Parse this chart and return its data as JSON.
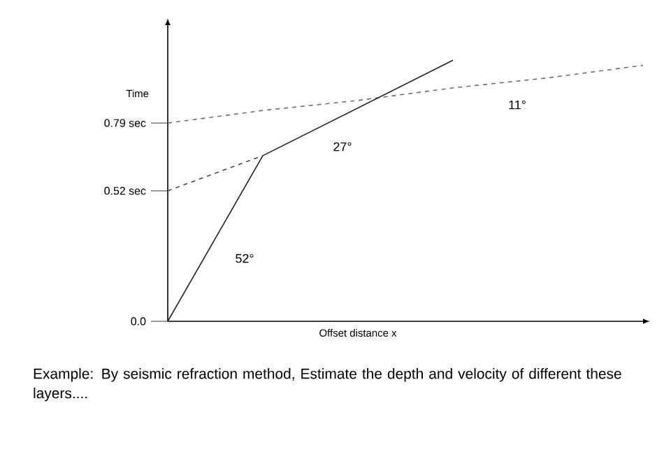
{
  "chart_data": {
    "type": "line",
    "ylabel": "Time",
    "xlabel": "Offset distance x",
    "categories": [
      null,
      null,
      null,
      null,
      null,
      null
    ],
    "ylim": [
      0,
      1.18
    ],
    "yticks": [
      {
        "value": 0,
        "label": "0.0"
      },
      {
        "value": 0.52,
        "label": "0.52 sec"
      },
      {
        "value": 0.79,
        "label": "0.79 sec"
      }
    ],
    "tick_labels": "y",
    "marker": "none",
    "series": [
      {
        "color": "#6e6e6e",
        "line_style": "dashed",
        "values": [
          0.79,
          0.84,
          0.88,
          0.93,
          0.97,
          1.02
        ]
      },
      {
        "color": "#222222",
        "line_style": "solid",
        "values": [
          0,
          0.66,
          0.85,
          1.04,
          null,
          null
        ]
      },
      {
        "color": "#4a4a4a",
        "line_style": "dashed",
        "values": [
          0.52,
          0.66,
          null,
          null,
          null,
          null
        ]
      }
    ],
    "annotations": [
      "52°",
      "27°",
      "11°",
      "Example: By seismic refraction method, Estimate the depth and velocity of different these layers...."
    ]
  }
}
